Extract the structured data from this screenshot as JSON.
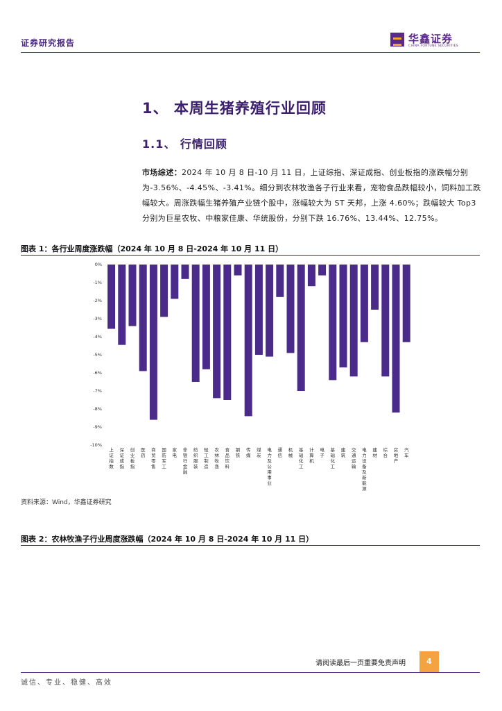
{
  "header": {
    "label": "证券研究报告",
    "logo_name": "华鑫证券",
    "logo_en": "CHINA FORTUNE SECURITIES"
  },
  "section": {
    "h1": "1、 本周生猪养殖行业回顾",
    "h2": "1.1、 行情回顾"
  },
  "paragraph": {
    "lead": "市场综述：",
    "body": "2024 年 10 月 8 日-10 月 11 日，上证综指、深证成指、创业板指的涨跌幅分别为-3.56%、-4.45%、-3.41%。细分到农林牧渔各子行业来看，宠物食品跌幅较小，饲料加工跌幅较大。周涨跌幅生猪养殖产业链个股中，涨幅较大为 ST 天邦，上涨 4.60%；跌幅较大 Top3 分别为巨星农牧、中粮家佳康、华统股份，分别下跌 16.76%、13.44%、12.75%。"
  },
  "figure1": {
    "title": "图表 1：各行业周度涨跌幅（2024 年 10 月 8 日-2024 年 10 月 11 日）",
    "source": "资料来源：Wind，华鑫证券研究"
  },
  "figure2": {
    "title": "图表 2：农林牧渔子行业周度涨跌幅（2024 年 10 月 8 日-2024 年 10 月 11 日）"
  },
  "chart_data": {
    "type": "bar",
    "title": "",
    "xlabel": "",
    "ylabel": "",
    "ylim": [
      -10,
      0
    ],
    "yticks": [
      "0%",
      "-1%",
      "-2%",
      "-3%",
      "-4%",
      "-5%",
      "-6%",
      "-7%",
      "-8%",
      "-9%",
      "-10%"
    ],
    "grid": false,
    "bar_color": "#4b2b8a",
    "categories": [
      "上证指数",
      "深证成指",
      "创业板指",
      "医药",
      "商贸零售",
      "国防军工",
      "家电",
      "非银行金融",
      "纺织服装",
      "轻工制造",
      "农林牧渔",
      "食品饮料",
      "钢铁",
      "传媒",
      "煤炭",
      "电力及公用事业",
      "通信",
      "机械",
      "基础化工",
      "计算机",
      "电子",
      "基础化工",
      "建筑",
      "交通运输",
      "电力设备及新能源",
      "建材",
      "综合",
      "房地产",
      "汽车"
    ],
    "values": [
      -3.56,
      -4.45,
      -3.41,
      -5.9,
      -8.6,
      -2.9,
      -1.9,
      -0.8,
      -6.5,
      -5.8,
      -7.4,
      -7.5,
      -0.6,
      -8.4,
      -5.0,
      -5.1,
      -1.8,
      -4.9,
      -7.0,
      -1.2,
      -0.6,
      -6.4,
      -5.7,
      -6.2,
      -4.3,
      -2.5,
      -6.2,
      -8.2,
      -4.3
    ]
  },
  "footer": {
    "disclaimer": "请阅读最后一页重要免责声明",
    "page": "4",
    "motto": "诚信、专业、稳健、高效"
  }
}
